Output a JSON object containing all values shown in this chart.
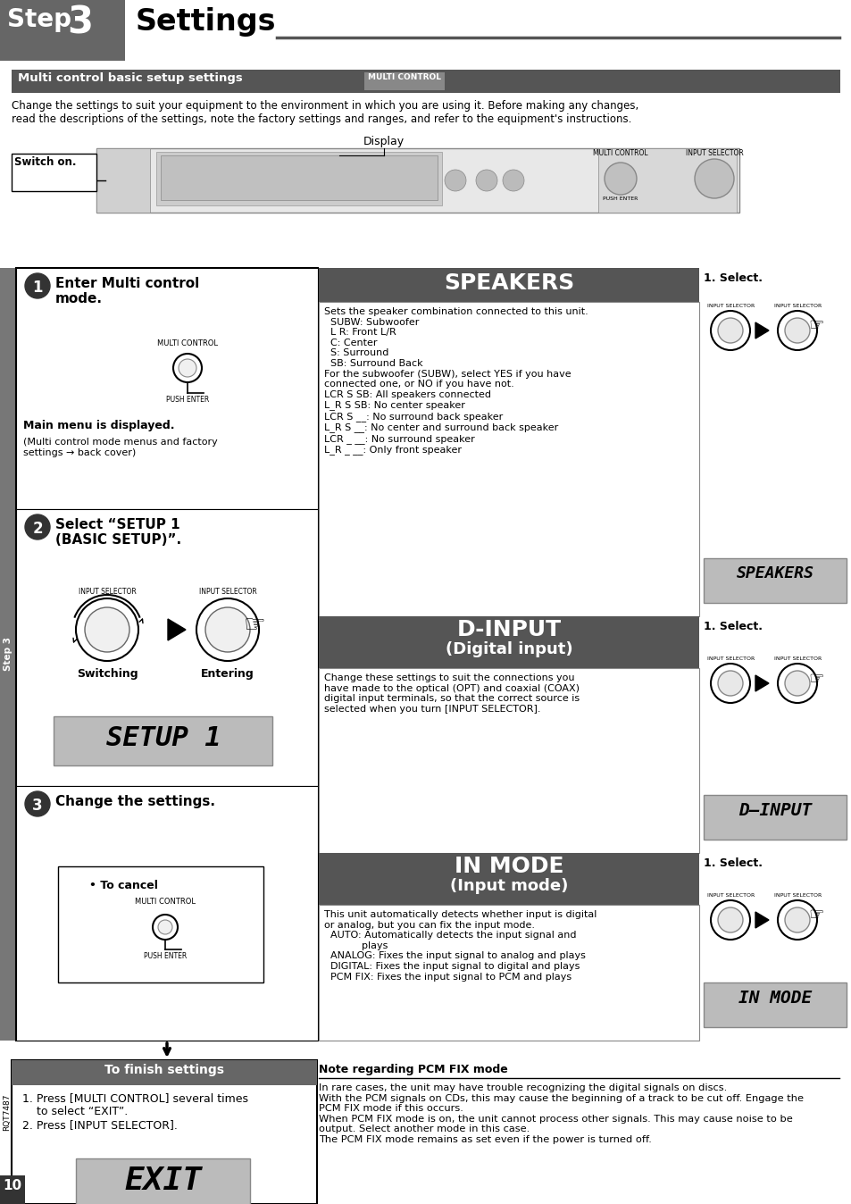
{
  "step_bg": "#666666",
  "subtitle_bar_color": "#555555",
  "subtitle_badge_color": "#888888",
  "intro_text": "Change the settings to suit your equipment to the environment in which you are using it. Before making any changes,\nread the descriptions of the settings, note the factory settings and ranges, and refer to the equipment's instructions.",
  "speakers_body": "Sets the speaker combination connected to this unit.\n  SUBW: Subwoofer\n  L R: Front L/R\n  C: Center\n  S: Surround\n  SB: Surround Back\nFor the subwoofer (SUBW), select YES if you have\nconnected one, or NO if you have not.\nLCR S SB: All speakers connected\nL_R S SB: No center speaker\nLCR S __: No surround back speaker\nL_R S __: No center and surround back speaker\nLCR _ __: No surround speaker\nL_R _ __: Only front speaker",
  "dinput_body": "Change these settings to suit the connections you\nhave made to the optical (OPT) and coaxial (COAX)\ndigital input terminals, so that the correct source is\nselected when you turn [INPUT SELECTOR].",
  "inmode_body": "This unit automatically detects whether input is digital\nor analog, but you can fix the input mode.\n  AUTO: Automatically detects the input signal and\n            plays\n  ANALOG: Fixes the input signal to analog and plays\n  DIGITAL: Fixes the input signal to digital and plays\n  PCM FIX: Fixes the input signal to PCM and plays",
  "finish_body": "1. Press [MULTI CONTROL] several times\n    to select “EXIT”.\n2. Press [INPUT SELECTOR].",
  "note_title": "Note regarding PCM FIX mode",
  "note_body": "In rare cases, the unit may have trouble recognizing the digital signals on discs.\nWith the PCM signals on CDs, this may cause the beginning of a track to be cut off. Engage the\nPCM FIX mode if this occurs.\nWhen PCM FIX mode is on, the unit cannot process other signals. This may cause noise to be\noutput. Select another mode in this case.\nThe PCM FIX mode remains as set even if the power is turned off.",
  "page_number": "10",
  "rqt_number": "RQT7487"
}
